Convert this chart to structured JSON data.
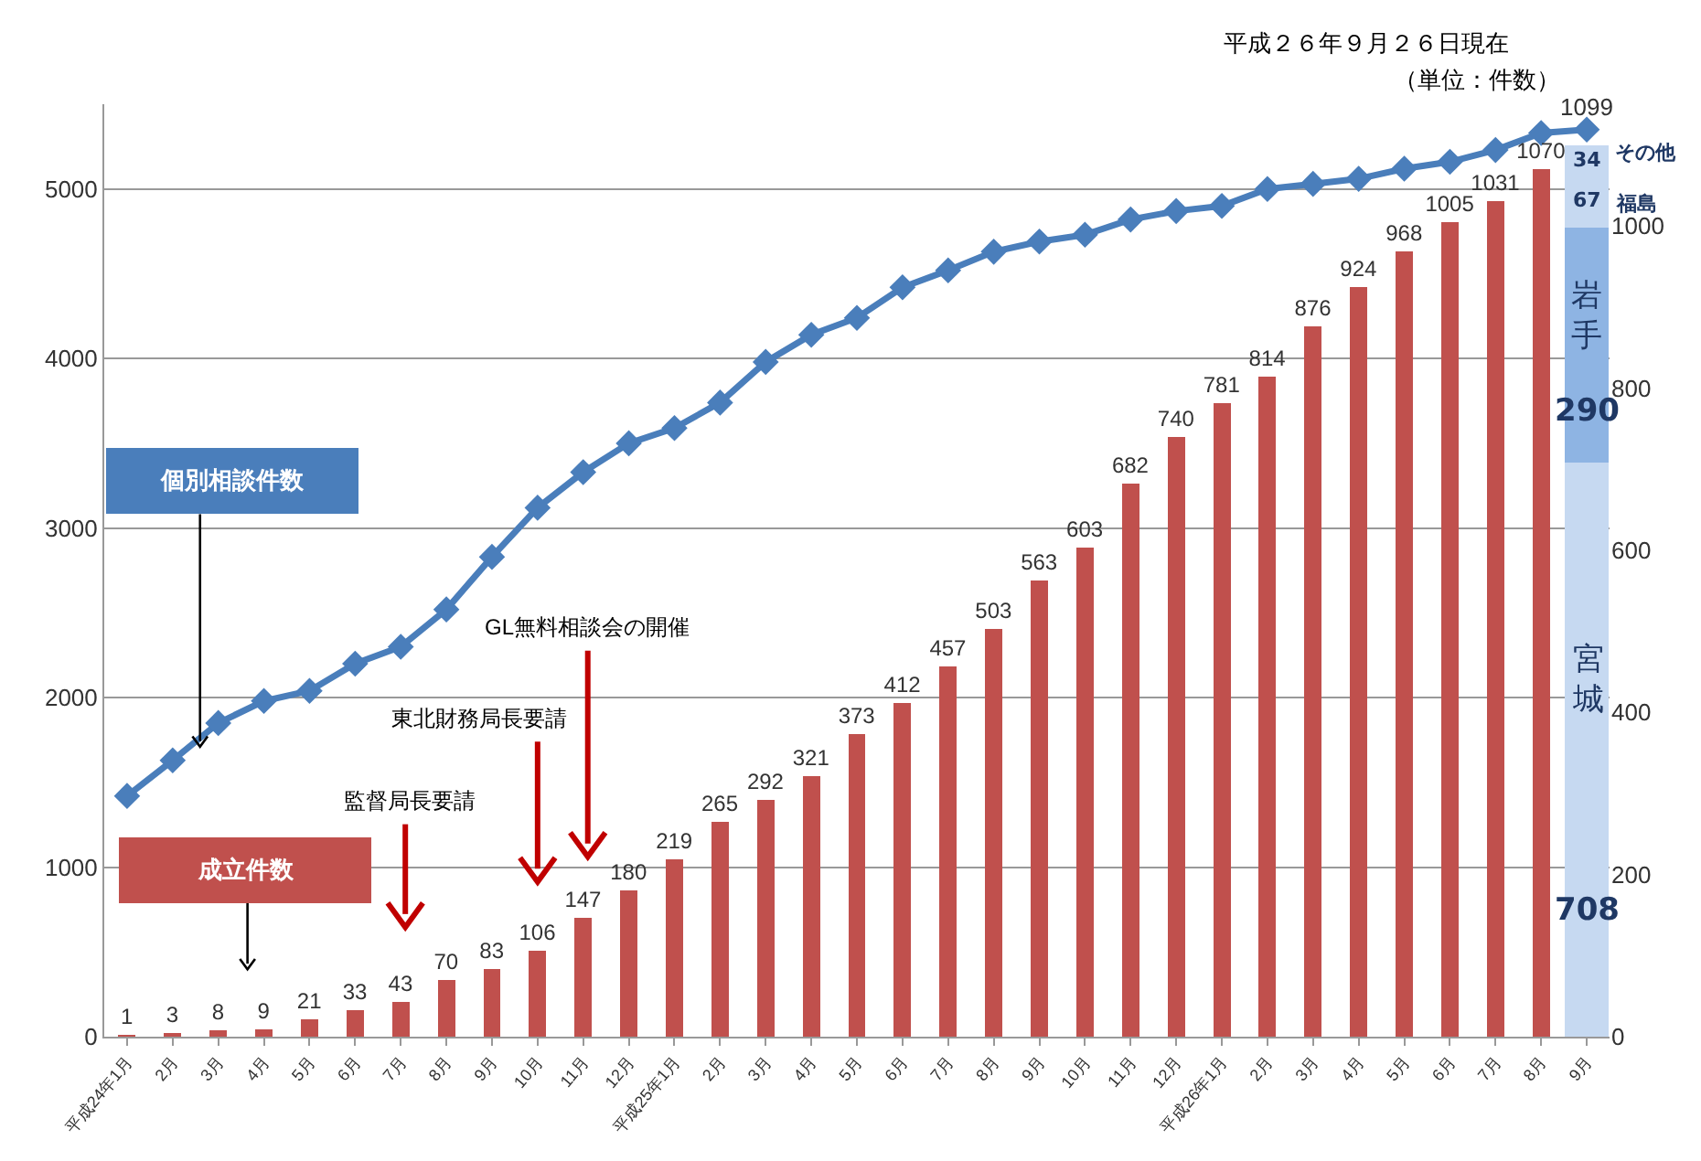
{
  "chart_data": {
    "type": "bar",
    "annotations": [
      "平成２６年９月２６日現在",
      "（単位：件数）",
      "監督局長要請",
      "東北財務局長要請",
      "GL無料相談会の開催"
    ],
    "categories": [
      "平成24年1月",
      "2月",
      "3月",
      "4月",
      "5月",
      "6月",
      "7月",
      "8月",
      "9月",
      "10月",
      "11月",
      "12月",
      "平成25年1月",
      "2月",
      "3月",
      "4月",
      "5月",
      "6月",
      "7月",
      "8月",
      "9月",
      "10月",
      "11月",
      "12月",
      "平成26年1月",
      "2月",
      "3月",
      "4月",
      "5月",
      "6月",
      "7月",
      "8月",
      "9月"
    ],
    "series": [
      {
        "name": "成立件数",
        "type": "bar",
        "axis": "y2",
        "color": "#c0504d",
        "values": [
          1,
          3,
          8,
          9,
          21,
          33,
          43,
          70,
          83,
          106,
          147,
          180,
          219,
          265,
          292,
          321,
          373,
          412,
          457,
          503,
          563,
          603,
          682,
          740,
          781,
          814,
          876,
          924,
          968,
          1005,
          1031,
          1070,
          null
        ],
        "value_labels": [
          "1",
          "3",
          "8",
          "9",
          "21",
          "33",
          "43",
          "70",
          "83",
          "106",
          "147",
          "180",
          "219",
          "265",
          "292",
          "321",
          "373",
          "412",
          "457",
          "503",
          "563",
          "603",
          "682",
          "740",
          "781",
          "814",
          "876",
          "924",
          "968",
          "1005",
          "1031",
          "1070",
          null
        ]
      },
      {
        "name": "宮城",
        "type": "bar",
        "axis": "y2",
        "color": "#c6d9f1",
        "values": [
          null,
          null,
          null,
          null,
          null,
          null,
          null,
          null,
          null,
          null,
          null,
          null,
          null,
          null,
          null,
          null,
          null,
          null,
          null,
          null,
          null,
          null,
          null,
          null,
          null,
          null,
          null,
          null,
          null,
          null,
          null,
          null,
          708
        ],
        "value_labels": [
          null,
          null,
          null,
          null,
          null,
          null,
          null,
          null,
          null,
          null,
          null,
          null,
          null,
          null,
          null,
          null,
          null,
          null,
          null,
          null,
          null,
          null,
          null,
          null,
          null,
          null,
          null,
          null,
          null,
          null,
          null,
          null,
          "708"
        ]
      },
      {
        "name": "岩手",
        "type": "bar",
        "axis": "y2",
        "color": "#8eb4e3",
        "values": [
          null,
          null,
          null,
          null,
          null,
          null,
          null,
          null,
          null,
          null,
          null,
          null,
          null,
          null,
          null,
          null,
          null,
          null,
          null,
          null,
          null,
          null,
          null,
          null,
          null,
          null,
          null,
          null,
          null,
          null,
          null,
          null,
          290
        ],
        "value_labels": [
          null,
          null,
          null,
          null,
          null,
          null,
          null,
          null,
          null,
          null,
          null,
          null,
          null,
          null,
          null,
          null,
          null,
          null,
          null,
          null,
          null,
          null,
          null,
          null,
          null,
          null,
          null,
          null,
          null,
          null,
          null,
          null,
          "290"
        ]
      },
      {
        "name": "福島",
        "type": "bar",
        "axis": "y2",
        "color": "#c6d9f1",
        "values": [
          null,
          null,
          null,
          null,
          null,
          null,
          null,
          null,
          null,
          null,
          null,
          null,
          null,
          null,
          null,
          null,
          null,
          null,
          null,
          null,
          null,
          null,
          null,
          null,
          null,
          null,
          null,
          null,
          null,
          null,
          null,
          null,
          67
        ],
        "value_labels": [
          null,
          null,
          null,
          null,
          null,
          null,
          null,
          null,
          null,
          null,
          null,
          null,
          null,
          null,
          null,
          null,
          null,
          null,
          null,
          null,
          null,
          null,
          null,
          null,
          null,
          null,
          null,
          null,
          null,
          null,
          null,
          null,
          "67"
        ]
      },
      {
        "name": "その他",
        "type": "bar",
        "axis": "y2",
        "color": "#c6d9f1",
        "values": [
          null,
          null,
          null,
          null,
          null,
          null,
          null,
          null,
          null,
          null,
          null,
          null,
          null,
          null,
          null,
          null,
          null,
          null,
          null,
          null,
          null,
          null,
          null,
          null,
          null,
          null,
          null,
          null,
          null,
          null,
          null,
          null,
          34
        ],
        "value_labels": [
          null,
          null,
          null,
          null,
          null,
          null,
          null,
          null,
          null,
          null,
          null,
          null,
          null,
          null,
          null,
          null,
          null,
          null,
          null,
          null,
          null,
          null,
          null,
          null,
          null,
          null,
          null,
          null,
          null,
          null,
          null,
          null,
          "34"
        ]
      },
      {
        "name": "個別相談件数",
        "type": "line",
        "axis": "y",
        "color": "#4a7ebb",
        "values": [
          1420,
          1630,
          1850,
          1980,
          2040,
          2200,
          2300,
          2520,
          2830,
          3120,
          3330,
          3500,
          3590,
          3740,
          3980,
          4140,
          4240,
          4420,
          4520,
          4630,
          4690,
          4730,
          4820,
          4870,
          4900,
          5000,
          5030,
          5060,
          5120,
          5160,
          5230,
          5330,
          5350
        ]
      }
    ],
    "stacked": true,
    "totals": [
      null,
      null,
      null,
      null,
      null,
      null,
      null,
      null,
      null,
      null,
      null,
      null,
      null,
      null,
      null,
      null,
      null,
      null,
      null,
      null,
      null,
      null,
      null,
      null,
      null,
      null,
      null,
      null,
      null,
      null,
      null,
      null,
      "1099"
    ],
    "ylim": [
      0,
      5500
    ],
    "yticks": [
      0,
      1000,
      2000,
      3000,
      4000,
      5000
    ],
    "y2lim": [
      0,
      1150
    ],
    "y2ticks": [
      0,
      200,
      400,
      600,
      800,
      1000
    ],
    "grid": "y",
    "marker": "diamond",
    "line_style": "solid"
  }
}
